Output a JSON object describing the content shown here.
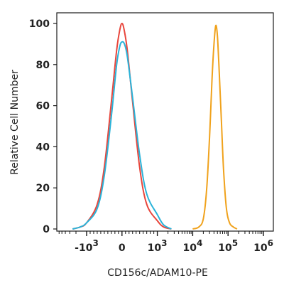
{
  "chart_data": {
    "type": "line",
    "title": "",
    "xlabel": "CD156c/ADAM10-PE",
    "ylabel": "Relative Cell Number",
    "x_scale": "biexponential",
    "ylim": [
      0,
      100
    ],
    "y_ticks": [
      0,
      20,
      40,
      60,
      80,
      100
    ],
    "x_ticks": [
      {
        "value": -1000,
        "base": "-10",
        "exp": "3"
      },
      {
        "value": 0,
        "base": "0",
        "exp": ""
      },
      {
        "value": 1000,
        "base": "10",
        "exp": "3"
      },
      {
        "value": 10000,
        "base": "10",
        "exp": "4"
      },
      {
        "value": 100000,
        "base": "10",
        "exp": "5"
      },
      {
        "value": 1000000,
        "base": "10",
        "exp": "6"
      }
    ],
    "grid": false,
    "legend": "none",
    "series": [
      {
        "color": "#e8463c",
        "points": [
          [
            -2500,
            0
          ],
          [
            -1500,
            1
          ],
          [
            -1000,
            3
          ],
          [
            -700,
            12
          ],
          [
            -500,
            30
          ],
          [
            -300,
            62
          ],
          [
            -150,
            87
          ],
          [
            -60,
            97
          ],
          [
            0,
            100
          ],
          [
            60,
            97
          ],
          [
            150,
            87
          ],
          [
            300,
            62
          ],
          [
            500,
            30
          ],
          [
            700,
            12
          ],
          [
            1000,
            4
          ],
          [
            1500,
            1
          ],
          [
            2500,
            0
          ]
        ]
      },
      {
        "color": "#2ab3d9",
        "points": [
          [
            -2500,
            0
          ],
          [
            -1500,
            1
          ],
          [
            -1000,
            3
          ],
          [
            -700,
            10
          ],
          [
            -500,
            26
          ],
          [
            -300,
            55
          ],
          [
            -150,
            80
          ],
          [
            -60,
            89
          ],
          [
            0,
            91
          ],
          [
            70,
            90
          ],
          [
            150,
            84
          ],
          [
            300,
            64
          ],
          [
            500,
            36
          ],
          [
            700,
            17
          ],
          [
            1000,
            7
          ],
          [
            1500,
            2
          ],
          [
            2500,
            0
          ]
        ]
      },
      {
        "color": "#f0a21c",
        "points": [
          [
            10000,
            0
          ],
          [
            15000,
            1
          ],
          [
            20000,
            5
          ],
          [
            25000,
            20
          ],
          [
            30000,
            45
          ],
          [
            35000,
            72
          ],
          [
            40000,
            90
          ],
          [
            45000,
            99
          ],
          [
            50000,
            94
          ],
          [
            55000,
            80
          ],
          [
            65000,
            52
          ],
          [
            75000,
            28
          ],
          [
            90000,
            10
          ],
          [
            110000,
            3
          ],
          [
            140000,
            1
          ],
          [
            180000,
            0
          ]
        ]
      }
    ]
  }
}
